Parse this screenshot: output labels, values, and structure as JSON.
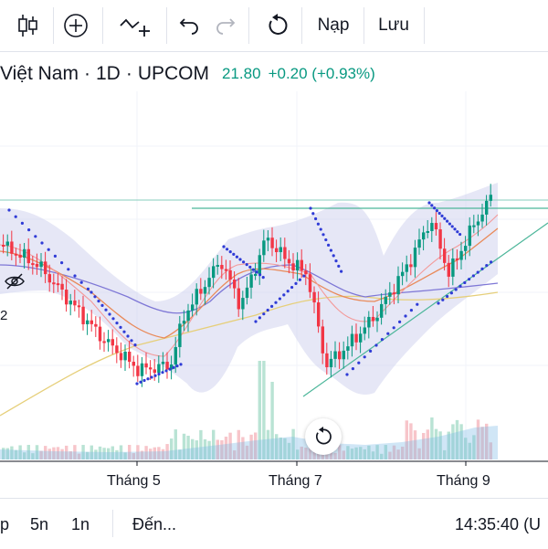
{
  "toolbar": {
    "icons": [
      "candles-icon",
      "add-circle-icon",
      "indicators-icon",
      "undo-icon",
      "redo-icon",
      "reset-icon"
    ],
    "load_label": "Nạp",
    "save_label": "Lưu"
  },
  "symbol": {
    "name": "Việt Nam",
    "interval": "1D",
    "exchange": "UPCOM",
    "price": "21.80",
    "change": "+0.20 (+0.93%)",
    "up_color": "#089981",
    "down_color": "#f23645"
  },
  "left_value": "2",
  "x_axis": {
    "labels": [
      "Tháng 5",
      "Tháng 7",
      "Tháng 9"
    ]
  },
  "bottom_bar": {
    "ranges": [
      "p",
      "5n",
      "1n"
    ],
    "goto_label": "Đến...",
    "clock": "14:35:40 (U"
  },
  "chart_data": {
    "type": "candlestick",
    "x_labels": [
      "Tháng 5",
      "Tháng 7",
      "Tháng 9"
    ],
    "last_close": 21.8,
    "indicators": [
      "bollinger-bands",
      "parabolic-sar",
      "moving-averages",
      "volume"
    ],
    "grid": true
  }
}
